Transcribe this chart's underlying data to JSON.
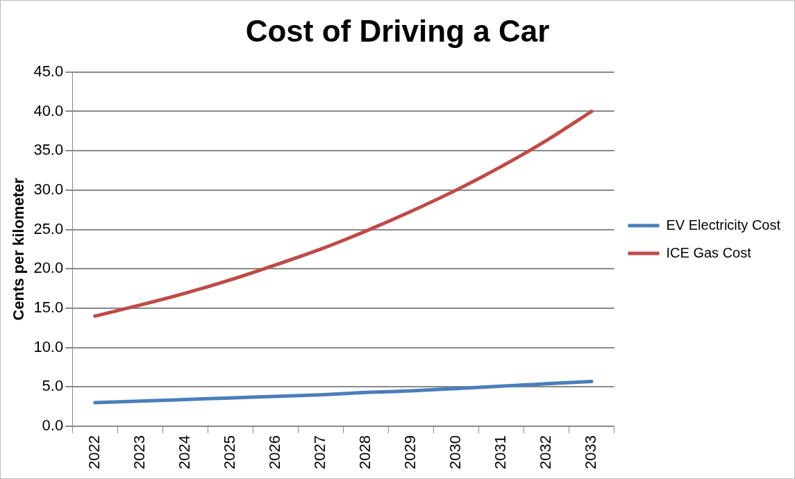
{
  "chart_data": {
    "type": "line",
    "title": "Cost of Driving a Car",
    "ylabel": "Cents per kilometer",
    "categories": [
      "2022",
      "2023",
      "2024",
      "2025",
      "2026",
      "2027",
      "2028",
      "2029",
      "2030",
      "2031",
      "2032",
      "2033"
    ],
    "series": [
      {
        "name": "EV Electricity Cost",
        "color": "#4a7ebb",
        "values": [
          3.0,
          3.2,
          3.4,
          3.6,
          3.8,
          4.0,
          4.3,
          4.5,
          4.8,
          5.1,
          5.4,
          5.7
        ]
      },
      {
        "name": "ICE Gas Cost",
        "color": "#be4b48",
        "values": [
          14.0,
          15.4,
          16.9,
          18.6,
          20.5,
          22.5,
          24.8,
          27.3,
          30.0,
          33.0,
          36.3,
          40.0
        ]
      }
    ],
    "ylim": [
      0,
      45
    ],
    "yticks": [
      {
        "value": 0,
        "label": "0.0"
      },
      {
        "value": 5,
        "label": "5.0"
      },
      {
        "value": 10,
        "label": "10.0"
      },
      {
        "value": 15,
        "label": "15.0"
      },
      {
        "value": 20,
        "label": "20.0"
      },
      {
        "value": 25,
        "label": "25.0"
      },
      {
        "value": 30,
        "label": "30.0"
      },
      {
        "value": 35,
        "label": "35.0"
      },
      {
        "value": 40,
        "label": "40.0"
      },
      {
        "value": 45,
        "label": "45.0"
      }
    ],
    "grid": "y",
    "legend": "right",
    "marker": "none",
    "line_style": "solid"
  }
}
